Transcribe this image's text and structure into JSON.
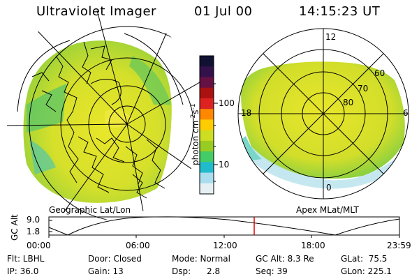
{
  "header": {
    "instrument": "Ultraviolet Imager",
    "date": "01 Jul 00",
    "time": "14:15:23 UT"
  },
  "left_panel": {
    "caption": "Geographic Lat/Lon"
  },
  "right_panel": {
    "caption": "Apex MLat/MLT",
    "mlt_labels": [
      "12",
      "18",
      "6",
      "0"
    ],
    "lat_labels": [
      "60",
      "70",
      "80"
    ]
  },
  "colorbar": {
    "unit_label": "photon cm",
    "unit_sup1": "-2",
    "unit_mid": "s",
    "unit_sup2": "-1",
    "ticks": [
      "100",
      "10"
    ],
    "scale": "log",
    "colors": [
      "#111133",
      "#33114a",
      "#661144",
      "#aa1111",
      "#dd2222",
      "#ff8800",
      "#ffcc00",
      "#ccdd22",
      "#99cc22",
      "#44cc66",
      "#22bbcc",
      "#aaddee",
      "#e6f0f4"
    ]
  },
  "altitude_plot": {
    "y_label": "GC Alt",
    "y_ticks": [
      "9.0",
      "1.8"
    ],
    "x_ticks": [
      "00:00",
      "06:00",
      "12:00",
      "18:00",
      "23:59"
    ],
    "current_time_marker_color": "#dd0000"
  },
  "info": {
    "col1": [
      "Flt: LBHL",
      "IP: 36.0"
    ],
    "col2": [
      "Door: Closed",
      "Gain: 13"
    ],
    "col3": [
      "Mode: Normal",
      "Dsp:      2.8"
    ],
    "col4": [
      "GC Alt: 8.3 Re",
      "Seq: 39"
    ],
    "col5": [
      "GLat:  75.5",
      "GLon: 225.1"
    ]
  }
}
